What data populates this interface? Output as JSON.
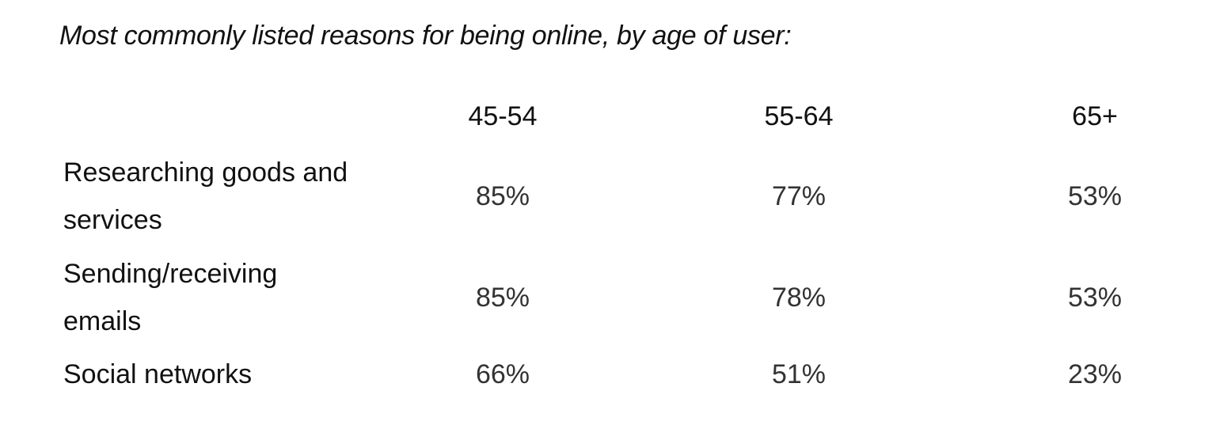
{
  "chart_data": {
    "type": "table",
    "title": "Most commonly listed reasons for being online, by age of user:",
    "columns": [
      "45-54",
      "55-64",
      "65+"
    ],
    "rows": [
      {
        "label": "Researching goods and services",
        "values": [
          "85%",
          "77%",
          "53%"
        ]
      },
      {
        "label": "Sending/receiving emails",
        "values": [
          "85%",
          "78%",
          "53%"
        ]
      },
      {
        "label": "Social networks",
        "values": [
          "66%",
          "51%",
          "23%"
        ]
      }
    ]
  }
}
